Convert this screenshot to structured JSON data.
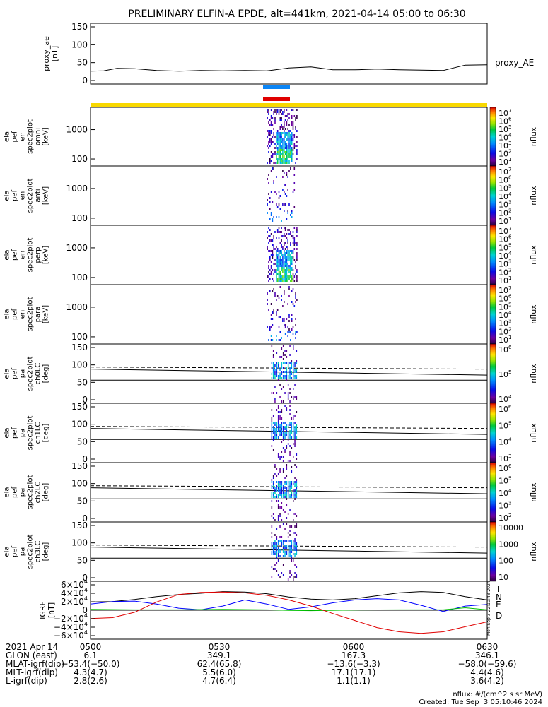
{
  "title": "PRELIMINARY ELFIN-A EPDE, alt=441km, 2021-04-14 05:00 to 06:30",
  "colors": {
    "sci_bar_blue": "#0b85f5",
    "sci_bar_red": "#e00000",
    "orbit_bar_yellow": "#f8d800",
    "grf_T": "#000000",
    "grf_N": "#0000ff",
    "grf_E": "#00c000",
    "grf_D": "#e00000"
  },
  "panels": [
    {
      "id": "proxy_ae",
      "ylabel": [
        "proxy_ae",
        "[nT]"
      ],
      "ylabel_size": 11,
      "ticks": [
        "150",
        "100",
        "50",
        "0"
      ],
      "right_label": "proxy_AE"
    },
    {
      "id": "en_omni",
      "ylabel": [
        "ela",
        "pef",
        "en",
        "spec2plot",
        "omni",
        "[keV]"
      ],
      "ylabel_size": 10,
      "ticks": [
        "1000",
        "100"
      ],
      "colorbar": {
        "label": "nflux",
        "ticks": [
          "10",
          "10",
          "10",
          "10",
          "10",
          "10",
          "10"
        ],
        "exps": [
          "7",
          "6",
          "5",
          "4",
          "3",
          "2",
          "1"
        ]
      }
    },
    {
      "id": "en_anti",
      "ylabel": [
        "ela",
        "pef",
        "en",
        "spec2plot",
        "anti",
        "[keV]"
      ],
      "ylabel_size": 10,
      "ticks": [
        "1000",
        "100"
      ],
      "colorbar": {
        "label": "nflux",
        "ticks": [
          "10",
          "10",
          "10",
          "10",
          "10",
          "10",
          "10"
        ],
        "exps": [
          "7",
          "6",
          "5",
          "4",
          "3",
          "2",
          "1"
        ]
      }
    },
    {
      "id": "en_perp",
      "ylabel": [
        "ela",
        "pef",
        "en",
        "spec2plot",
        "perp",
        "[keV]"
      ],
      "ylabel_size": 10,
      "ticks": [
        "1000",
        "100"
      ],
      "colorbar": {
        "label": "nflux",
        "ticks": [
          "10",
          "10",
          "10",
          "10",
          "10",
          "10",
          "10"
        ],
        "exps": [
          "7",
          "6",
          "5",
          "4",
          "3",
          "2",
          "1"
        ]
      }
    },
    {
      "id": "en_para",
      "ylabel": [
        "ela",
        "pef",
        "en",
        "spec2plot",
        "para",
        "[keV]"
      ],
      "ylabel_size": 10,
      "ticks": [
        "1000",
        "100"
      ],
      "colorbar": {
        "label": "nflux",
        "ticks": [
          "10",
          "10",
          "10",
          "10",
          "10",
          "10",
          "10"
        ],
        "exps": [
          "7",
          "6",
          "5",
          "4",
          "3",
          "2",
          "1"
        ]
      }
    },
    {
      "id": "pa_ch0",
      "ylabel": [
        "ela",
        "pef",
        "pa",
        "spec2plot",
        "ch0LC",
        "[deg]"
      ],
      "ylabel_size": 10,
      "ticks": [
        "150",
        "100",
        "50",
        "0"
      ],
      "colorbar": {
        "label": "nflux",
        "ticks": [
          "10",
          "10",
          "10"
        ],
        "exps": [
          "6",
          "5",
          "4"
        ]
      }
    },
    {
      "id": "pa_ch1",
      "ylabel": [
        "ela",
        "pef",
        "pa",
        "spec2plot",
        "ch1LC",
        "[deg]"
      ],
      "ylabel_size": 10,
      "ticks": [
        "150",
        "100",
        "50",
        "0"
      ],
      "colorbar": {
        "label": "nflux",
        "ticks": [
          "10",
          "10",
          "10",
          "10"
        ],
        "exps": [
          "6",
          "5",
          "4",
          "3"
        ]
      }
    },
    {
      "id": "pa_ch2",
      "ylabel": [
        "ela",
        "pef",
        "pa",
        "spec2plot",
        "ch2LC",
        "[deg]"
      ],
      "ylabel_size": 10,
      "ticks": [
        "150",
        "100",
        "50",
        "0"
      ],
      "colorbar": {
        "label": "nflux",
        "ticks": [
          "10",
          "10",
          "10",
          "10",
          "10"
        ],
        "exps": [
          "6",
          "5",
          "4",
          "3",
          "2"
        ]
      }
    },
    {
      "id": "pa_ch3",
      "ylabel": [
        "ela",
        "pef",
        "pa",
        "spec2plot",
        "ch3LC",
        "[deg]"
      ],
      "ylabel_size": 10,
      "ticks": [
        "150",
        "100",
        "50",
        "0"
      ],
      "colorbar": {
        "label": "nflux",
        "ticks": [
          "10000",
          "1000",
          "100",
          "10"
        ],
        "exps": []
      }
    },
    {
      "id": "igrf",
      "ylabel": [
        "IGRF",
        "[nT]"
      ],
      "ylabel_size": 11,
      "ticks": [
        "6×10",
        "4×10",
        "2×10",
        "0",
        "−2×10",
        "−4×10",
        "−6×10"
      ],
      "tick_exps": [
        "4",
        "4",
        "4",
        "",
        "4",
        "4",
        "4"
      ],
      "legend": [
        "T",
        "N",
        "E",
        "D"
      ],
      "side_stamp": "Mon Sep  3 22:10:48 2024"
    }
  ],
  "footer": {
    "rows": [
      {
        "label": "2021 Apr 14",
        "values": [
          "0500",
          "0530",
          "0600",
          "0630"
        ]
      },
      {
        "label": "GLON (east)",
        "values": [
          "6.1",
          "349.1",
          "167.3",
          "346.1"
        ]
      },
      {
        "label": "MLAT-igrf(dip)",
        "values": [
          "−53.4(−50.0)",
          "62.4(65.8)",
          "−13.6(−3.3)",
          "−58.0(−59.6)"
        ]
      },
      {
        "label": "MLT-igrf(dip)",
        "values": [
          "4.3(4.7)",
          "5.5(6.0)",
          "17.1(17.1)",
          "4.4(4.6)"
        ]
      },
      {
        "label": "L-igrf(dip)",
        "values": [
          "2.8(2.6)",
          "4.7(6.4)",
          "1.1(1.1)",
          "3.6(4.2)"
        ]
      }
    ],
    "units_note": "nflux: #/(cm^2 s sr MeV)",
    "created": "Created: Tue Sep  3 05:10:46 2024"
  },
  "chart_data": {
    "type": "line",
    "x_axis": {
      "ticks": [
        "0500",
        "0530",
        "0600",
        "0630"
      ]
    },
    "series": [
      {
        "name": "proxy_AE",
        "x": [
          "05:00",
          "05:03",
          "05:06",
          "05:10",
          "05:15",
          "05:20",
          "05:25",
          "05:30",
          "05:35",
          "05:40",
          "05:45",
          "05:50",
          "05:55",
          "06:00",
          "06:05",
          "06:10",
          "06:15",
          "06:20",
          "06:25",
          "06:30"
        ],
        "y": [
          26,
          27,
          34,
          33,
          28,
          26,
          28,
          27,
          28,
          27,
          35,
          38,
          30,
          30,
          32,
          30,
          29,
          28,
          43,
          44
        ]
      },
      {
        "name": "T",
        "x": [
          "05:00",
          "05:05",
          "05:10",
          "05:15",
          "05:20",
          "05:25",
          "05:30",
          "05:35",
          "05:40",
          "05:45",
          "05:50",
          "05:55",
          "06:00",
          "06:05",
          "06:10",
          "06:15",
          "06:20",
          "06:25",
          "06:30"
        ],
        "y": [
          20000,
          21000,
          26000,
          33000,
          38000,
          41000,
          45000,
          44000,
          40000,
          32000,
          27000,
          25000,
          28000,
          35000,
          42000,
          45000,
          43000,
          33000,
          25000
        ]
      },
      {
        "name": "N",
        "x": [
          "05:00",
          "05:05",
          "05:10",
          "05:15",
          "05:20",
          "05:25",
          "05:30",
          "05:35",
          "05:40",
          "05:45",
          "05:50",
          "05:55",
          "06:00",
          "06:05",
          "06:10",
          "06:15",
          "06:20",
          "06:25",
          "06:30"
        ],
        "y": [
          15000,
          21000,
          22000,
          15000,
          5000,
          1000,
          10000,
          25000,
          15000,
          2000,
          8000,
          18000,
          25000,
          28000,
          25000,
          12000,
          -3000,
          10000,
          14000
        ]
      },
      {
        "name": "E",
        "x": [
          "05:00",
          "05:10",
          "05:20",
          "05:30",
          "05:40",
          "05:45",
          "05:50",
          "06:00",
          "06:10",
          "06:20",
          "06:25",
          "06:30"
        ],
        "y": [
          2000,
          1000,
          1000,
          2000,
          1000,
          -500,
          -1000,
          500,
          1000,
          1000,
          6000,
          1000
        ]
      },
      {
        "name": "D",
        "x": [
          "05:00",
          "05:05",
          "05:10",
          "05:15",
          "05:20",
          "05:25",
          "05:30",
          "05:35",
          "05:40",
          "05:45",
          "05:50",
          "05:55",
          "06:00",
          "06:05",
          "06:10",
          "06:15",
          "06:20",
          "06:25",
          "06:30"
        ],
        "y": [
          -20000,
          -18000,
          -5000,
          20000,
          38000,
          43000,
          44000,
          42000,
          36000,
          25000,
          10000,
          -8000,
          -25000,
          -42000,
          -52000,
          -56000,
          -52000,
          -40000,
          -28000
        ]
      }
    ],
    "reference_lines_deg": [
      {
        "name": "dashed",
        "start": 112,
        "end": 105
      },
      {
        "name": "upper",
        "start": 105,
        "end": 85
      },
      {
        "name": "flat",
        "value": 68
      }
    ],
    "spectrogram_window": [
      "05:40",
      "05:48"
    ]
  }
}
